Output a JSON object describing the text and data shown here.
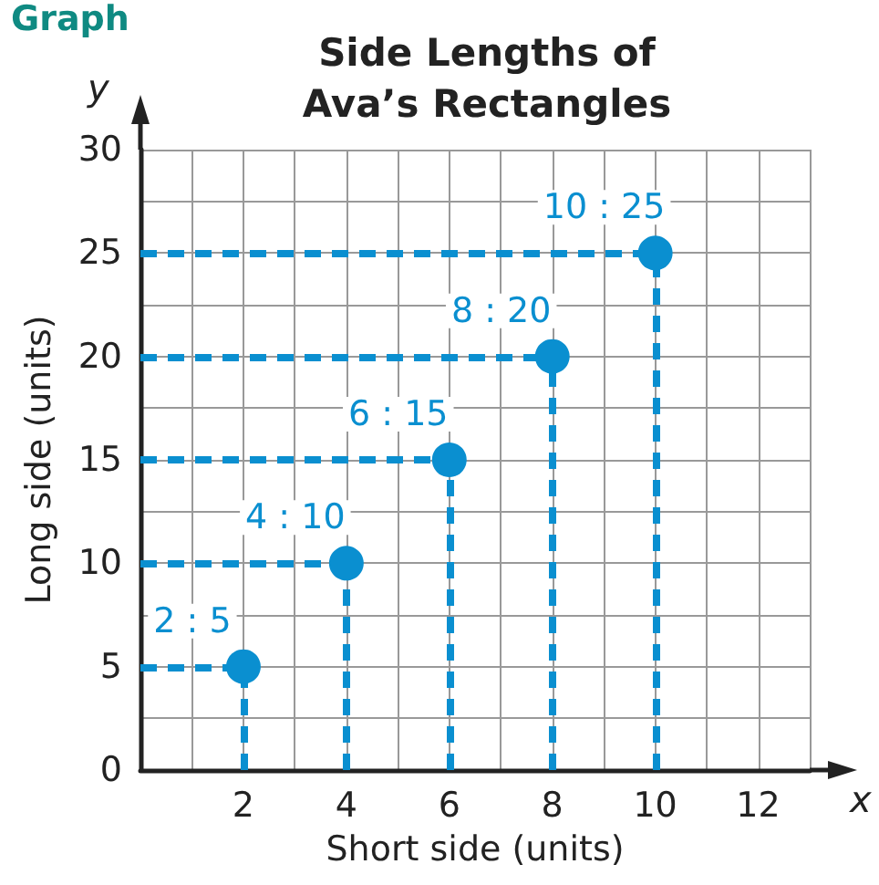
{
  "chart_data": {
    "type": "scatter",
    "title": "Side Lengths of\nAva’s Rectangles",
    "xlabel": "Short side (units)",
    "ylabel": "Long side (units)",
    "annotations": [
      "Graph",
      "x",
      "y"
    ],
    "x": [
      2,
      4,
      6,
      8,
      10
    ],
    "series": [
      {
        "color": "#0a8fd0",
        "values": [
          5,
          10,
          15,
          20,
          25
        ],
        "value_labels": [
          "2 : 5",
          "4 : 10",
          "6 : 15",
          "8 : 20",
          "10 : 25"
        ]
      }
    ],
    "xlim": [
      0,
      13
    ],
    "ylim": [
      0,
      30
    ],
    "xticks": [
      {
        "value": 1,
        "label": null
      },
      2,
      {
        "value": 3,
        "label": null
      },
      4,
      {
        "value": 5,
        "label": null
      },
      6,
      {
        "value": 7,
        "label": null
      },
      8,
      {
        "value": 9,
        "label": null
      },
      10,
      {
        "value": 11,
        "label": null
      },
      12,
      {
        "value": 13,
        "label": null
      }
    ],
    "yticks": [
      0,
      {
        "value": 2.5,
        "label": null
      },
      5,
      {
        "value": 7.5,
        "label": null
      },
      10,
      {
        "value": 12.5,
        "label": null
      },
      15,
      {
        "value": 17.5,
        "label": null
      },
      20,
      {
        "value": 22.5,
        "label": null
      },
      25,
      {
        "value": 27.5,
        "label": null
      },
      30
    ],
    "grid": true,
    "marker": "circle",
    "line_style": "dashed"
  }
}
